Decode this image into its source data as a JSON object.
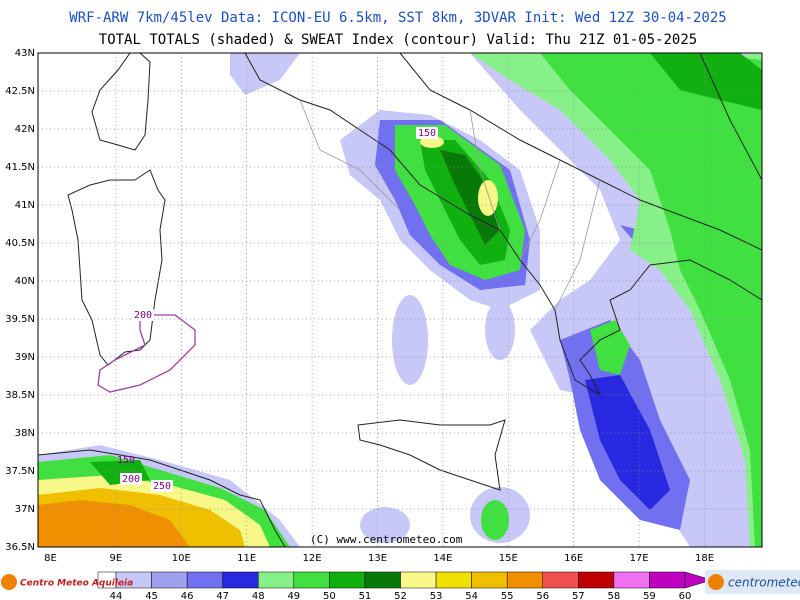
{
  "header": {
    "line1": "WRF-ARW 7km/45lev   Data: ICON-EU 6.5km, SST 8km, 3DVAR   Init: Wed 12Z 30-04-2025",
    "line2": "TOTAL TOTALS (shaded) & SWEAT Index (contour)  Valid: Thu 21Z 01-05-2025"
  },
  "map": {
    "latitude_labels": [
      "43N",
      "42.5N",
      "42N",
      "41.5N",
      "41N",
      "40.5N",
      "40N",
      "39.5N",
      "39N",
      "38.5N",
      "38N",
      "37.5N",
      "37N",
      "36.5N"
    ],
    "longitude_labels": [
      "8E",
      "9E",
      "10E",
      "11E",
      "12E",
      "13E",
      "14E",
      "15E",
      "16E",
      "17E",
      "18E"
    ],
    "contour_labels": [
      "150",
      "200",
      "150",
      "200",
      "250"
    ],
    "copyright": "(C) www.centrometeo.com"
  },
  "colorbar": {
    "colors": [
      "#c8c8f8",
      "#a0a0f0",
      "#7070f0",
      "#2828e0",
      "#88f088",
      "#40e040",
      "#10b010",
      "#087808",
      "#f8f888",
      "#f0e000",
      "#f0c000",
      "#f09000",
      "#f05050",
      "#c00000",
      "#f070f0",
      "#c000c0"
    ],
    "labels": [
      "44",
      "45",
      "46",
      "47",
      "48",
      "49",
      "50",
      "51",
      "52",
      "53",
      "54",
      "55",
      "56",
      "57",
      "58",
      "59",
      "60"
    ]
  },
  "logos": {
    "left": "Centro Meteo Aquileia",
    "right": "centrometeo"
  }
}
